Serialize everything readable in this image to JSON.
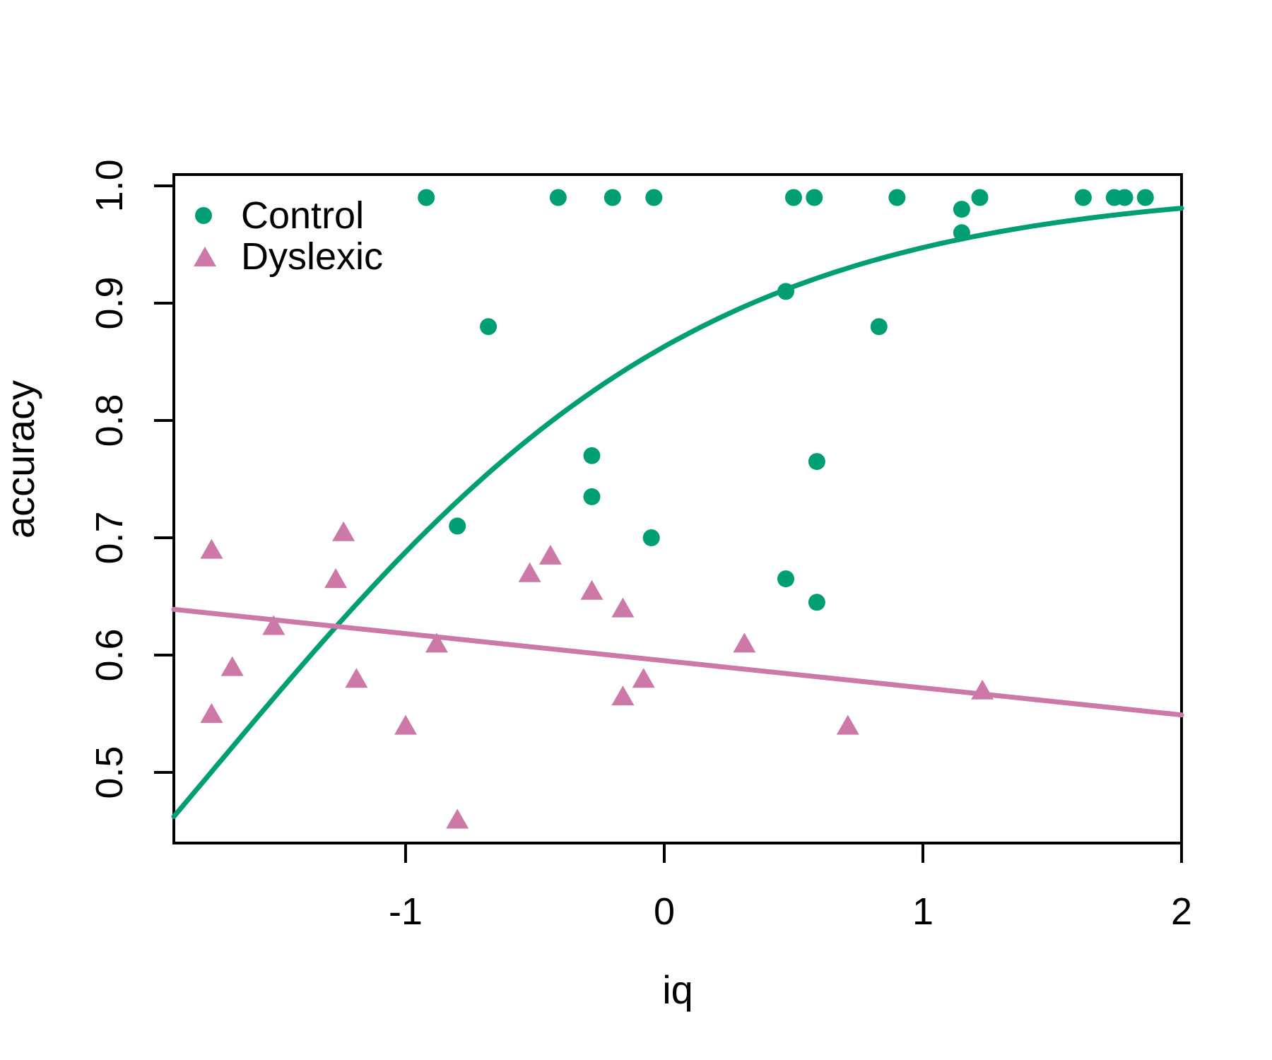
{
  "page": {
    "background": "#FFFFFF"
  },
  "axes": {
    "x_label": "iq",
    "y_label": "accuracy"
  },
  "legend": {
    "items": [
      {
        "label": "Control",
        "marker": "circle",
        "color": "#009E73"
      },
      {
        "label": "Dyslexic",
        "marker": "triangle",
        "color": "#CC79A7"
      }
    ]
  },
  "colors": {
    "control": "#009E73",
    "dyslexic": "#CC79A7",
    "axis": "#000000",
    "background": "#FFFFFF"
  },
  "chart_data": {
    "type": "scatter",
    "title": "",
    "xlabel": "iq",
    "ylabel": "accuracy",
    "grid": false,
    "legend_position": "top-left-inside",
    "x_range": [
      -1.896,
      2.0
    ],
    "y_range": [
      0.4398,
      1.0096
    ],
    "x_ticks": {
      "values": [
        -1,
        0,
        1,
        2
      ],
      "labels": [
        "-1",
        "0",
        "1",
        "2"
      ]
    },
    "y_ticks": {
      "values": [
        1.0,
        0.9,
        0.8,
        0.7,
        0.6,
        0.5
      ],
      "labels": [
        "1.0",
        "0.9",
        "0.8",
        "0.7",
        "0.6",
        "0.5"
      ]
    },
    "series": [
      {
        "name": "Control",
        "marker": "circle",
        "color": "#009E73",
        "points": [
          [
            -0.92,
            0.99
          ],
          [
            -0.41,
            0.99
          ],
          [
            -0.2,
            0.99
          ],
          [
            -0.04,
            0.99
          ],
          [
            0.5,
            0.99
          ],
          [
            0.58,
            0.99
          ],
          [
            0.9,
            0.99
          ],
          [
            1.22,
            0.99
          ],
          [
            1.62,
            0.99
          ],
          [
            1.74,
            0.99
          ],
          [
            1.78,
            0.99
          ],
          [
            1.86,
            0.99
          ],
          [
            1.15,
            0.98
          ],
          [
            1.15,
            0.96
          ],
          [
            0.47,
            0.91
          ],
          [
            -0.68,
            0.88
          ],
          [
            0.83,
            0.88
          ],
          [
            -0.28,
            0.77
          ],
          [
            0.59,
            0.765
          ],
          [
            -0.28,
            0.735
          ],
          [
            -0.8,
            0.71
          ],
          [
            -0.05,
            0.7
          ],
          [
            0.47,
            0.665
          ],
          [
            0.59,
            0.645
          ]
        ]
      },
      {
        "name": "Dyslexic",
        "marker": "triangle",
        "color": "#CC79A7",
        "points": [
          [
            -1.75,
            0.69
          ],
          [
            -1.24,
            0.705
          ],
          [
            -1.27,
            0.665
          ],
          [
            -1.51,
            0.625
          ],
          [
            -1.67,
            0.59
          ],
          [
            -1.75,
            0.55
          ],
          [
            -1.19,
            0.58
          ],
          [
            -1.0,
            0.54
          ],
          [
            -0.88,
            0.61
          ],
          [
            -0.8,
            0.46
          ],
          [
            -0.52,
            0.67
          ],
          [
            -0.44,
            0.685
          ],
          [
            -0.28,
            0.655
          ],
          [
            -0.16,
            0.64
          ],
          [
            -0.16,
            0.565
          ],
          [
            -0.08,
            0.58
          ],
          [
            0.31,
            0.61
          ],
          [
            0.71,
            0.54
          ],
          [
            1.23,
            0.57
          ]
        ]
      }
    ],
    "fit_curves": [
      {
        "name": "Control fit",
        "model": "logistic",
        "formula": "accuracy = 1 / (1 + exp(-(1.84 + 1.05 * iq)))",
        "intercept": 1.84,
        "slope": 1.05,
        "color": "#009E73",
        "x_start": -1.896,
        "x_end": 2.0
      },
      {
        "name": "Dyslexic fit",
        "model": "linear",
        "formula": "accuracy = 0.5952 - 0.0231 * iq",
        "intercept": 0.5952,
        "slope": -0.0231,
        "color": "#CC79A7",
        "x_start": -1.896,
        "x_end": 2.0
      }
    ]
  }
}
